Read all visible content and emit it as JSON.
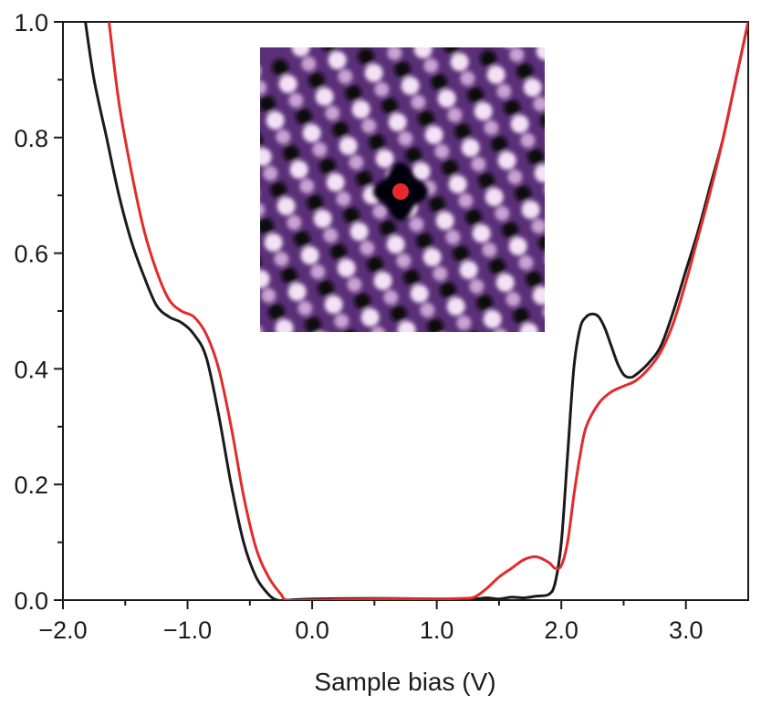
{
  "chart_data": {
    "type": "line",
    "title": "",
    "xlabel": "Sample bias (V)",
    "ylabel": "",
    "xlim": [
      -2.0,
      3.5
    ],
    "ylim": [
      0.0,
      1.0
    ],
    "x_ticks": [
      -2.0,
      -1.0,
      0.0,
      1.0,
      2.0,
      3.0
    ],
    "x_tick_labels": [
      "−2.0",
      "−1.0",
      "0.0",
      "1.0",
      "2.0",
      "3.0"
    ],
    "y_ticks": [
      0.0,
      0.2,
      0.4,
      0.6,
      0.8,
      1.0
    ],
    "y_tick_labels": [
      "0.0",
      "0.2",
      "0.4",
      "0.6",
      "0.8",
      "1.0"
    ],
    "series": [
      {
        "name": "black",
        "color": "#1a1a1a",
        "x": [
          -1.82,
          -1.75,
          -1.65,
          -1.55,
          -1.45,
          -1.35,
          -1.25,
          -1.15,
          -1.05,
          -0.95,
          -0.85,
          -0.75,
          -0.65,
          -0.55,
          -0.45,
          -0.35,
          -0.28,
          -0.2,
          0.0,
          0.5,
          1.0,
          1.3,
          1.4,
          1.5,
          1.6,
          1.7,
          1.8,
          1.9,
          1.95,
          2.0,
          2.05,
          2.1,
          2.15,
          2.2,
          2.25,
          2.3,
          2.35,
          2.4,
          2.45,
          2.5,
          2.55,
          2.6,
          2.7,
          2.8,
          2.9,
          3.0,
          3.1,
          3.2,
          3.3,
          3.4,
          3.5
        ],
        "values": [
          1.0,
          0.9,
          0.8,
          0.7,
          0.62,
          0.56,
          0.51,
          0.49,
          0.48,
          0.46,
          0.42,
          0.32,
          0.2,
          0.1,
          0.04,
          0.01,
          0.0,
          0.0,
          0.002,
          0.003,
          0.002,
          0.002,
          0.004,
          0.002,
          0.005,
          0.004,
          0.007,
          0.01,
          0.03,
          0.1,
          0.25,
          0.4,
          0.47,
          0.49,
          0.495,
          0.49,
          0.47,
          0.44,
          0.41,
          0.39,
          0.385,
          0.39,
          0.41,
          0.44,
          0.5,
          0.57,
          0.64,
          0.72,
          0.8,
          0.9,
          1.0
        ]
      },
      {
        "name": "red",
        "color": "#e22b2b",
        "x": [
          -1.63,
          -1.55,
          -1.45,
          -1.35,
          -1.25,
          -1.15,
          -1.05,
          -0.95,
          -0.85,
          -0.75,
          -0.65,
          -0.55,
          -0.45,
          -0.35,
          -0.25,
          -0.2,
          0.0,
          0.5,
          1.0,
          1.2,
          1.3,
          1.4,
          1.5,
          1.6,
          1.7,
          1.8,
          1.9,
          1.95,
          2.0,
          2.05,
          2.1,
          2.15,
          2.2,
          2.3,
          2.4,
          2.5,
          2.6,
          2.7,
          2.8,
          2.9,
          3.0,
          3.1,
          3.2,
          3.3,
          3.4,
          3.5
        ],
        "values": [
          1.0,
          0.86,
          0.74,
          0.64,
          0.57,
          0.52,
          0.5,
          0.49,
          0.46,
          0.4,
          0.3,
          0.18,
          0.09,
          0.04,
          0.01,
          0.0,
          0.0,
          0.002,
          0.002,
          0.003,
          0.005,
          0.02,
          0.04,
          0.055,
          0.07,
          0.075,
          0.065,
          0.055,
          0.06,
          0.1,
          0.18,
          0.25,
          0.3,
          0.34,
          0.36,
          0.37,
          0.38,
          0.4,
          0.43,
          0.48,
          0.55,
          0.63,
          0.71,
          0.8,
          0.9,
          1.0
        ]
      }
    ],
    "inset": {
      "description_colors": {
        "background": "#5a2f78",
        "bright": "#f3e2f5",
        "dark": "#0b0b0f"
      },
      "marker_color": "#e8282f"
    }
  }
}
